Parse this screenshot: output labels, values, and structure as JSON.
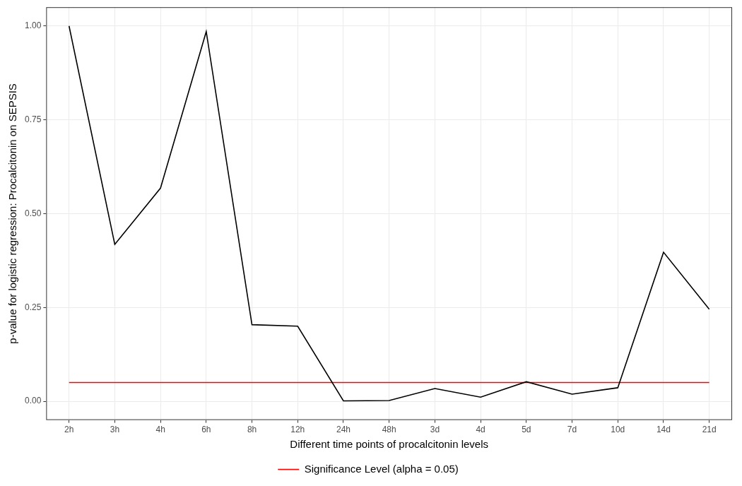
{
  "chart_data": {
    "type": "line",
    "x_label": "Different time points of procalcitonin levels",
    "y_label": "p-value for logistic regression: Procalcitonin on SEPSIS",
    "categories": [
      "2h",
      "3h",
      "4h",
      "6h",
      "8h",
      "12h",
      "24h",
      "48h",
      "3d",
      "4d",
      "5d",
      "7d",
      "10d",
      "14d",
      "21d"
    ],
    "series": [
      {
        "color": "#000000",
        "values": [
          1.0,
          0.418,
          0.568,
          0.985,
          0.204,
          0.2,
          0.001,
          0.002,
          0.034,
          0.011,
          0.052,
          0.019,
          0.036,
          0.397,
          0.245
        ]
      },
      {
        "name": "Significance Level (alpha = 0.05)",
        "color": "#ff0000",
        "values": [
          0.05,
          0.05,
          0.05,
          0.05,
          0.05,
          0.05,
          0.05,
          0.05,
          0.05,
          0.05,
          0.05,
          0.05,
          0.05,
          0.05,
          0.05
        ]
      }
    ],
    "ylim": [
      -0.05,
      1.05
    ],
    "yticks": [
      {
        "value": 0,
        "label": "0.00"
      },
      {
        "value": 0.25,
        "label": "0.25"
      },
      {
        "value": 0.5,
        "label": "0.50"
      },
      {
        "value": 0.75,
        "label": "0.75"
      },
      {
        "value": 1,
        "label": "1.00"
      }
    ],
    "grid": true,
    "legend": "bottom"
  }
}
